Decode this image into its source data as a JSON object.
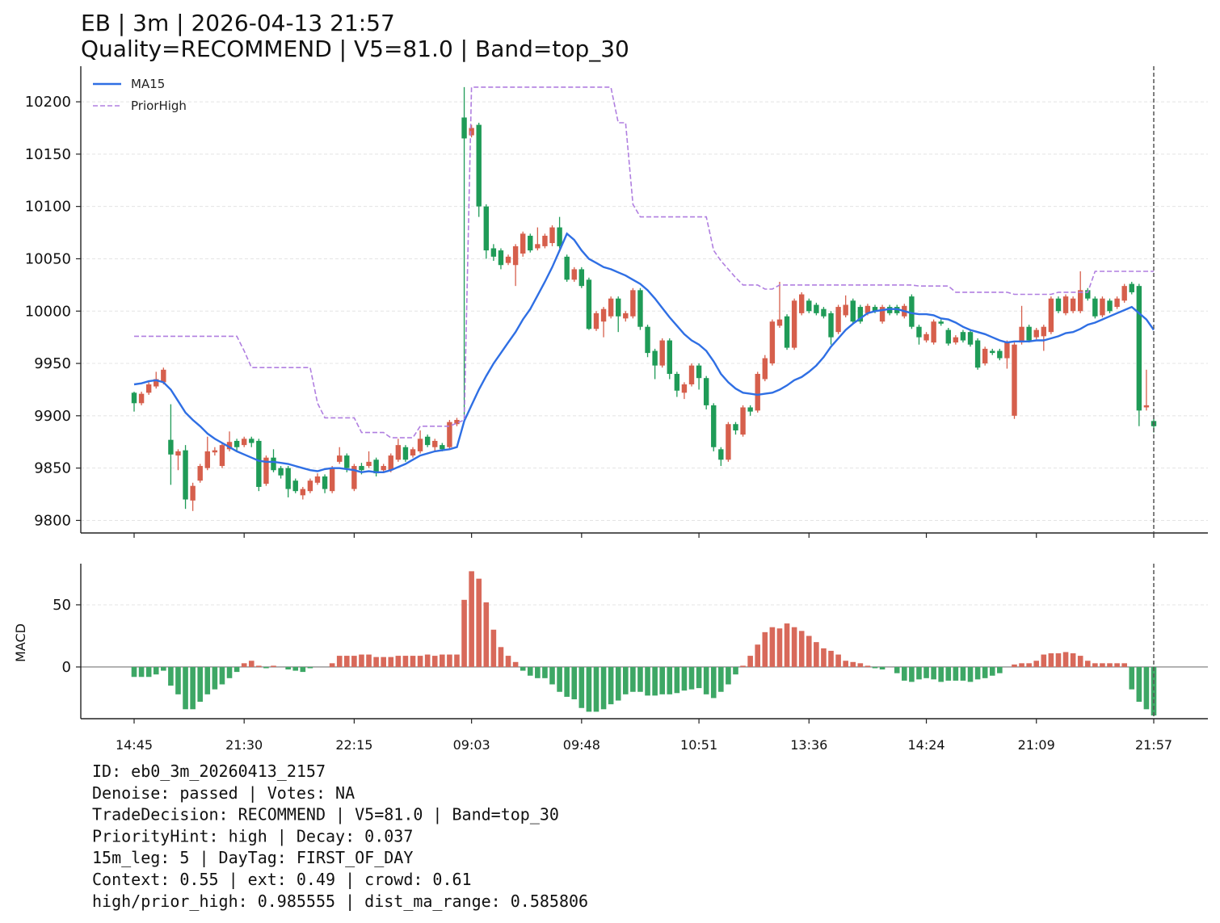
{
  "chart_data": [
    {
      "type": "candlestick",
      "title": "EB | 3m | 2026-04-13 21:57",
      "subtitle": "Quality=RECOMMEND | V5=81.0 | Band=top_30",
      "categories": [
        "14:45",
        null,
        null,
        null,
        null,
        null,
        null,
        null,
        null,
        null,
        null,
        null,
        null,
        null,
        null,
        "21:30",
        null,
        null,
        null,
        null,
        null,
        null,
        null,
        null,
        null,
        null,
        null,
        null,
        null,
        null,
        "22:15",
        null,
        null,
        null,
        null,
        null,
        null,
        null,
        null,
        null,
        null,
        null,
        null,
        null,
        null,
        null,
        "09:03",
        null,
        null,
        null,
        null,
        null,
        null,
        null,
        null,
        null,
        null,
        null,
        null,
        null,
        null,
        "09:48",
        null,
        null,
        null,
        null,
        null,
        null,
        null,
        null,
        null,
        null,
        null,
        null,
        null,
        null,
        null,
        "10:51",
        null,
        null,
        null,
        null,
        null,
        null,
        null,
        null,
        null,
        null,
        null,
        null,
        null,
        null,
        "13:36",
        null,
        null,
        null,
        null,
        null,
        null,
        null,
        null,
        null,
        null,
        null,
        null,
        null,
        null,
        null,
        "14:24",
        null,
        null,
        null,
        null,
        null,
        null,
        null,
        null,
        null,
        null,
        null,
        null,
        null,
        null,
        "21:09",
        null,
        null,
        null,
        null,
        null,
        null,
        null,
        null,
        null,
        null,
        null,
        null,
        null,
        null,
        null,
        "21:57"
      ],
      "open": [
        9922,
        9912,
        9922,
        9928,
        9932,
        9877,
        9862,
        9867,
        9819,
        9838,
        9850,
        9865,
        9852,
        9868,
        9876,
        9872,
        9878,
        9876,
        9835,
        9860,
        9850,
        9850,
        9838,
        9824,
        9828,
        9836,
        9842,
        9828,
        9856,
        9862,
        9830,
        9852,
        9852,
        9858,
        9848,
        9848,
        9858,
        9870,
        9862,
        9866,
        9880,
        9870,
        9872,
        9870,
        9892,
        10185,
        10168,
        10178,
        10100,
        10060,
        10058,
        10046,
        10044,
        10055,
        10072,
        10060,
        10062,
        10065,
        10080,
        10052,
        10030,
        10040,
        10030,
        9983,
        9990,
        9995,
        10012,
        9993,
        9995,
        10020,
        9985,
        9962,
        9948,
        9972,
        9940,
        9922,
        9930,
        9948,
        9936,
        9910,
        9868,
        9858,
        9892,
        9882,
        9908,
        9905,
        9935,
        9950,
        9986,
        9995,
        9965,
        9998,
        10010,
        10006,
        10002,
        9998,
        9980,
        9996,
        10010,
        10004,
        9998,
        10004,
        9990,
        10004,
        10004,
        9995,
        10014,
        9985,
        9972,
        9970,
        9990,
        9982,
        9970,
        9980,
        9980,
        9972,
        9950,
        9962,
        9962,
        9955,
        9900,
        9970,
        9985,
        9975,
        9976,
        9980,
        10012,
        9998,
        10000,
        10000,
        10020,
        10012,
        9996,
        10010,
        10004,
        10010,
        10026,
        10024,
        9908,
        9895
      ],
      "high": [
        9923,
        9923,
        9932,
        9942,
        9946,
        9911,
        9868,
        9872,
        9836,
        9854,
        9880,
        9870,
        9874,
        9885,
        9878,
        9880,
        9880,
        9878,
        9862,
        9868,
        9852,
        9852,
        9840,
        9832,
        9840,
        9845,
        9844,
        9852,
        9870,
        9864,
        9854,
        9855,
        9866,
        9860,
        9854,
        9864,
        9878,
        9872,
        9870,
        9886,
        9882,
        9878,
        9874,
        9896,
        9898,
        10214,
        10178,
        10180,
        10102,
        10064,
        10060,
        10054,
        10064,
        10076,
        10074,
        10080,
        10074,
        10082,
        10090,
        10054,
        10042,
        10042,
        10032,
        10000,
        10004,
        10014,
        10014,
        10000,
        10022,
        10022,
        9987,
        9964,
        9974,
        9974,
        9942,
        9932,
        9950,
        9950,
        9938,
        9912,
        9870,
        9894,
        9894,
        9910,
        9910,
        9942,
        9958,
        9992,
        10028,
        9997,
        10012,
        10018,
        10012,
        10008,
        10004,
        10000,
        10006,
        10015,
        10012,
        10006,
        10007,
        10006,
        10006,
        10006,
        10006,
        10007,
        10016,
        9987,
        9980,
        9992,
        9992,
        9984,
        9977,
        9982,
        9982,
        9974,
        9966,
        9964,
        9964,
        9972,
        9970,
        10005,
        9987,
        9984,
        9987,
        10014,
        10014,
        10016,
        10014,
        10038,
        10022,
        10014,
        10014,
        10012,
        10014,
        10026,
        10028,
        10026,
        9944,
        9897
      ],
      "low": [
        9904,
        9910,
        9920,
        9926,
        9930,
        9834,
        9848,
        9811,
        9809,
        9836,
        9848,
        9862,
        9850,
        9866,
        9866,
        9870,
        9870,
        9828,
        9833,
        9846,
        9840,
        9822,
        9826,
        9820,
        9826,
        9834,
        9826,
        9826,
        9854,
        9846,
        9828,
        9844,
        9850,
        9842,
        9846,
        9846,
        9856,
        9856,
        9860,
        9864,
        9870,
        9866,
        9866,
        9868,
        9890,
        9896,
        10166,
        10090,
        10050,
        10048,
        10040,
        10044,
        10024,
        10052,
        10056,
        10058,
        10060,
        10062,
        10060,
        10028,
        10028,
        10022,
        9982,
        9981,
        9975,
        9993,
        9980,
        9990,
        9993,
        9982,
        9956,
        9935,
        9946,
        9935,
        9918,
        9916,
        9928,
        9925,
        9906,
        9866,
        9852,
        9856,
        9882,
        9880,
        9900,
        9903,
        9933,
        9948,
        9984,
        9963,
        9963,
        9996,
        9998,
        9996,
        9993,
        9968,
        9978,
        9994,
        9988,
        9988,
        9996,
        9998,
        9988,
        9996,
        9996,
        9993,
        9983,
        9968,
        9970,
        9968,
        9986,
        9967,
        9968,
        9970,
        9966,
        9944,
        9948,
        9958,
        9953,
        9945,
        9897,
        9968,
        9970,
        9973,
        9962,
        9978,
        9998,
        9996,
        9998,
        9998,
        10010,
        9993,
        9994,
        9998,
        10002,
        10008,
        10016,
        9890,
        9905,
        9884
      ],
      "close": [
        9912,
        9921,
        9930,
        9935,
        9944,
        9863,
        9866,
        9820,
        9833,
        9852,
        9866,
        9867,
        9872,
        9875,
        9870,
        9878,
        9874,
        9832,
        9860,
        9848,
        9843,
        9830,
        9828,
        9830,
        9838,
        9842,
        9830,
        9850,
        9862,
        9850,
        9852,
        9848,
        9856,
        9845,
        9852,
        9862,
        9872,
        9858,
        9868,
        9878,
        9872,
        9876,
        9868,
        9894,
        9896,
        10165,
        10175,
        10100,
        10058,
        10052,
        10044,
        10052,
        10062,
        10074,
        10058,
        10064,
        10072,
        10080,
        10062,
        10030,
        10040,
        10024,
        9983,
        9998,
        10002,
        10012,
        9995,
        9998,
        10020,
        9985,
        9960,
        9948,
        9972,
        9940,
        9924,
        9930,
        9948,
        9936,
        9910,
        9870,
        9858,
        9892,
        9886,
        9908,
        9904,
        9940,
        9955,
        9990,
        9992,
        9965,
        10010,
        10016,
        10000,
        9998,
        9995,
        9975,
        10004,
        10006,
        9990,
        9990,
        10005,
        10000,
        10004,
        9998,
        9998,
        10005,
        9985,
        9975,
        9978,
        9990,
        9988,
        9969,
        9975,
        9972,
        9968,
        9946,
        9964,
        9960,
        9955,
        9970,
        9968,
        9985,
        9972,
        9982,
        9985,
        10012,
        10000,
        10014,
        10012,
        10020,
        10012,
        9995,
        10012,
        10000,
        10012,
        10024,
        10018,
        9905,
        9910,
        9890
      ],
      "up_color": "#d65f4c",
      "down_color": "#1f9b57",
      "series": [
        {
          "name": "MA15",
          "color": "#2f6fe4",
          "style": "solid",
          "values": [
            9930,
            9931,
            9933,
            9934,
            9932,
            9925,
            9914,
            9903,
            9896,
            9890,
            9883,
            9878,
            9874,
            9870,
            9866,
            9863,
            9860,
            9857,
            9856,
            9856,
            9855,
            9854,
            9852,
            9850,
            9848,
            9847,
            9849,
            9850,
            9850,
            9849,
            9848,
            9846,
            9847,
            9846,
            9846,
            9848,
            9851,
            9854,
            9858,
            9862,
            9864,
            9866,
            9867,
            9868,
            9870,
            9895,
            9910,
            9925,
            9938,
            9950,
            9960,
            9970,
            9980,
            9992,
            10002,
            10015,
            10028,
            10042,
            10058,
            10074,
            10068,
            10058,
            10050,
            10046,
            10042,
            10040,
            10037,
            10034,
            10030,
            10026,
            10020,
            10012,
            10003,
            9994,
            9986,
            9978,
            9972,
            9968,
            9962,
            9952,
            9940,
            9932,
            9926,
            9922,
            9921,
            9920,
            9921,
            9922,
            9925,
            9929,
            9934,
            9937,
            9942,
            9948,
            9956,
            9966,
            9974,
            9982,
            9988,
            9993,
            9998,
            10000,
            10001,
            10002,
            10002,
            10000,
            9998,
            9997,
            9997,
            9996,
            9993,
            9992,
            9989,
            9985,
            9982,
            9980,
            9978,
            9975,
            9972,
            9970,
            9971,
            9971,
            9971,
            9972,
            9972,
            9974,
            9976,
            9979,
            9980,
            9983,
            9987,
            9989,
            9992,
            9995,
            9998,
            10001,
            10004,
            9998,
            9992,
            9982
          ]
        },
        {
          "name": "PriorHigh",
          "color": "#b07fe0",
          "style": "dashed",
          "values": [
            9976,
            9976,
            9976,
            9976,
            9976,
            9976,
            9976,
            9976,
            9976,
            9976,
            9976,
            9976,
            9976,
            9976,
            9976,
            9962,
            9946,
            9946,
            9946,
            9946,
            9946,
            9946,
            9946,
            9946,
            9946,
            9912,
            9898,
            9898,
            9898,
            9898,
            9898,
            9884,
            9884,
            9884,
            9884,
            9879,
            9879,
            9879,
            9879,
            9890,
            9890,
            9890,
            9890,
            9890,
            9893,
            9896,
            10214,
            10214,
            10214,
            10214,
            10214,
            10214,
            10214,
            10214,
            10214,
            10214,
            10214,
            10214,
            10214,
            10214,
            10214,
            10214,
            10214,
            10214,
            10214,
            10214,
            10180,
            10180,
            10102,
            10090,
            10090,
            10090,
            10090,
            10090,
            10090,
            10090,
            10090,
            10090,
            10090,
            10058,
            10048,
            10040,
            10032,
            10025,
            10025,
            10025,
            10021,
            10021,
            10025,
            10025,
            10025,
            10025,
            10025,
            10025,
            10025,
            10025,
            10025,
            10025,
            10025,
            10025,
            10025,
            10025,
            10025,
            10025,
            10025,
            10025,
            10025,
            10024,
            10024,
            10024,
            10024,
            10024,
            10018,
            10018,
            10018,
            10018,
            10018,
            10018,
            10018,
            10018,
            10016,
            10016,
            10016,
            10016,
            10016,
            10016,
            10018,
            10018,
            10018,
            10018,
            10018,
            10038,
            10038,
            10038,
            10038,
            10038,
            10038,
            10038,
            10038,
            10038
          ]
        }
      ],
      "ylim": [
        9788,
        10234
      ],
      "yticks": [
        9800,
        9850,
        9900,
        9950,
        10000,
        10050,
        10100,
        10150,
        10200
      ],
      "grid": true,
      "legend": "upper left"
    },
    {
      "type": "bar",
      "ylabel": "MACD",
      "values": [
        -8,
        -8,
        -8,
        -6,
        -3,
        -15,
        -22,
        -34,
        -34,
        -28,
        -22,
        -18,
        -14,
        -9,
        -4,
        3,
        5,
        1,
        -1,
        1,
        0,
        -2,
        -3,
        -4,
        -1,
        0,
        0,
        3,
        9,
        9,
        9,
        10,
        10,
        8,
        8,
        8,
        9,
        9,
        9,
        9,
        10,
        9,
        10,
        10,
        10,
        54,
        77,
        71,
        52,
        30,
        16,
        9,
        4,
        -3,
        -7,
        -9,
        -9,
        -14,
        -20,
        -24,
        -26,
        -33,
        -36,
        -36,
        -34,
        -30,
        -27,
        -22,
        -20,
        -20,
        -23,
        -23,
        -22,
        -22,
        -21,
        -19,
        -18,
        -17,
        -22,
        -25,
        -20,
        -14,
        -6,
        1,
        9,
        18,
        28,
        32,
        31,
        35,
        32,
        29,
        25,
        20,
        15,
        13,
        10,
        5,
        4,
        3,
        1,
        -1,
        -2,
        0,
        -5,
        -11,
        -12,
        -10,
        -9,
        -10,
        -12,
        -11,
        -11,
        -11,
        -12,
        -10,
        -9,
        -7,
        -5,
        0,
        2,
        3,
        3,
        5,
        10,
        11,
        11,
        12,
        11,
        9,
        5,
        3,
        3,
        3,
        3,
        3,
        -18,
        -28,
        -34,
        -39
      ],
      "pos_color": "#d8695a",
      "neg_color": "#3da765",
      "ylim": [
        -41.6,
        83.1
      ],
      "yticks": [
        0,
        50
      ],
      "grid": true
    }
  ],
  "notes": [
    "ID: eb0_3m_20260413_2157",
    "Denoise: passed | Votes: NA",
    "TradeDecision: RECOMMEND | V5=81.0 | Band=top_30",
    "PriorityHint: high | Decay: 0.037",
    "15m_leg: 5 | DayTag: FIRST_OF_DAY",
    "Context: 0.55 | ext: 0.49 | crowd: 0.61",
    "high/prior_high: 0.985555 | dist_ma_range: 0.585806"
  ]
}
